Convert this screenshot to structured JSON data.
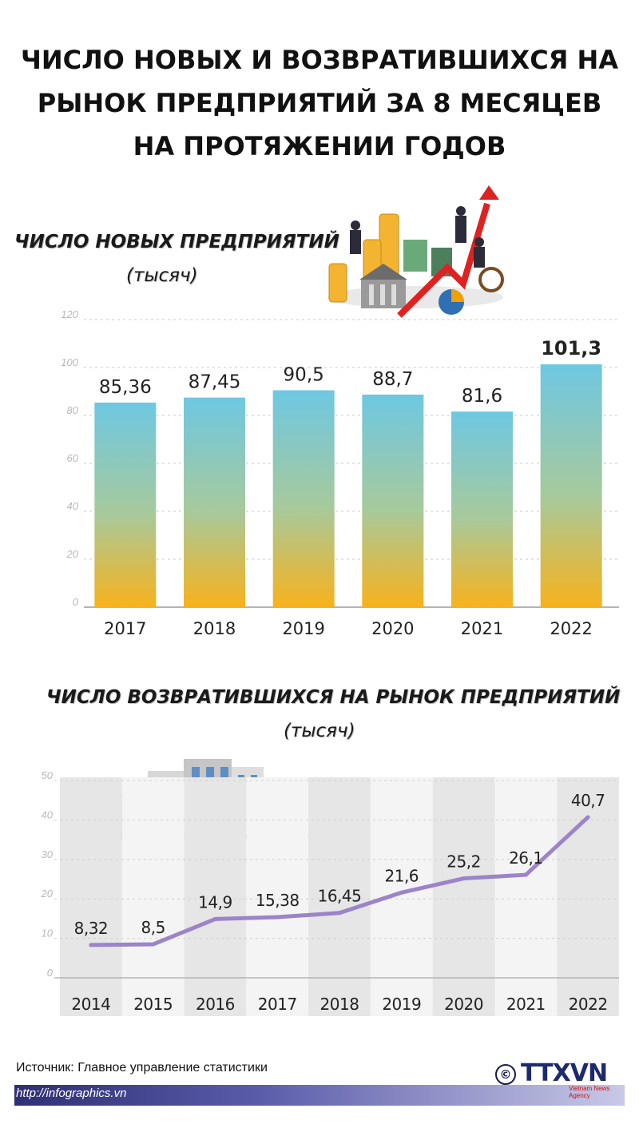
{
  "title_lines": [
    "ЧИСЛО НОВЫХ И ВОЗВРАТИВШИХСЯ НА",
    "РЫНОК ПРЕДПРИЯТИЙ ЗА 8 МЕСЯЦЕВ",
    "НА ПРОТЯЖЕНИИ ГОДОВ"
  ],
  "chart_data": [
    {
      "type": "bar",
      "title": "ЧИСЛО НОВЫХ ПРЕДПРИЯТИЙ",
      "unit": "(тысяч)",
      "categories": [
        "2017",
        "2018",
        "2019",
        "2020",
        "2021",
        "2022"
      ],
      "values": [
        85.36,
        87.45,
        90.5,
        88.7,
        81.6,
        101.3
      ],
      "value_labels": [
        "85,36",
        "87,45",
        "90,5",
        "88,7",
        "81,6",
        "101,3"
      ],
      "highlight_index": 5,
      "yticks": [
        0,
        20,
        40,
        60,
        80,
        100,
        120
      ],
      "ylim": [
        0,
        120
      ],
      "grid": true,
      "bar_gradient": [
        "#6ec8e2",
        "#f7b21c"
      ]
    },
    {
      "type": "line",
      "title": "ЧИСЛО ВОЗВРАТИВШИХСЯ НА РЫНОК ПРЕДПРИЯТИЙ",
      "unit": "(тысяч)",
      "categories": [
        "2014",
        "2015",
        "2016",
        "2017",
        "2018",
        "2019",
        "2020",
        "2021",
        "2022"
      ],
      "values": [
        8.32,
        8.5,
        14.9,
        15.38,
        16.45,
        21.6,
        25.2,
        26.1,
        40.7
      ],
      "value_labels": [
        "8,32",
        "8,5",
        "14,9",
        "15,38",
        "16,45",
        "21,6",
        "25,2",
        "26,1",
        "40,7"
      ],
      "yticks": [
        0,
        10,
        20,
        30,
        40,
        50
      ],
      "ylim": [
        0,
        50
      ],
      "grid": true,
      "line_color": "#9b84c9"
    }
  ],
  "footer": {
    "source": "Источник: Главное управление статистики",
    "url": "http://infographics.vn",
    "logo": "TTXVN",
    "logo_sub": "Vietnam News Agency",
    "copyright_icon": "©"
  }
}
